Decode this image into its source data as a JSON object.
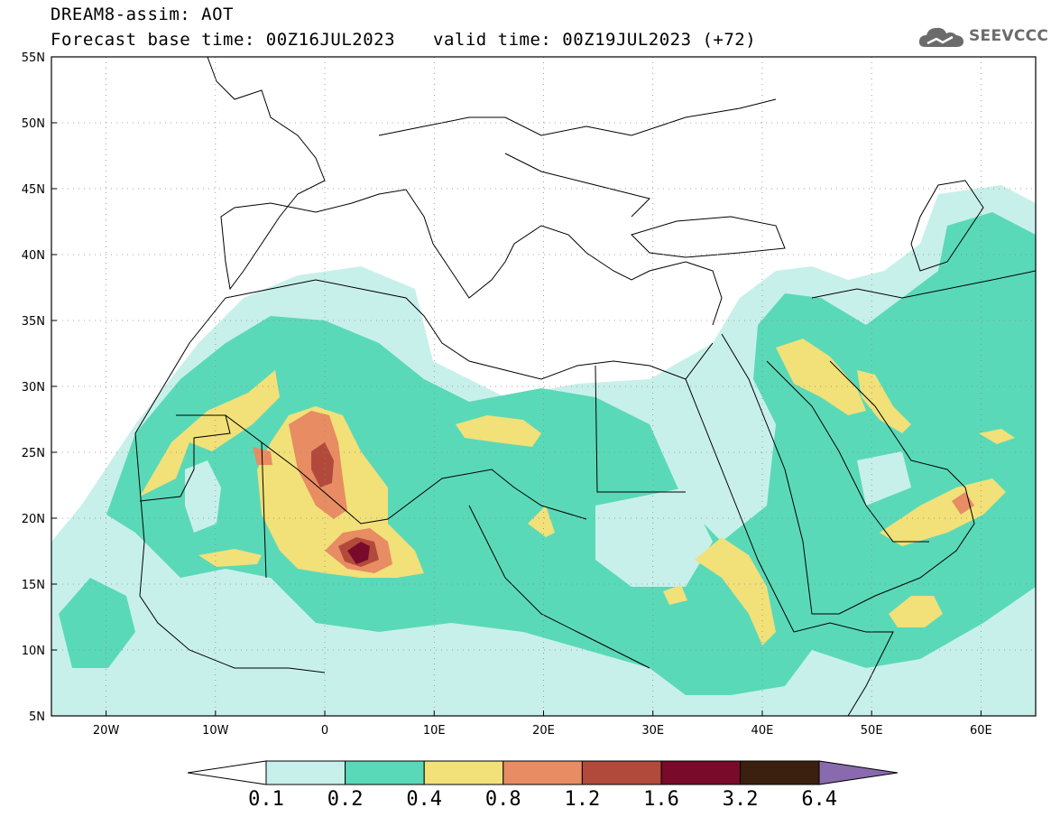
{
  "header": {
    "line1": "DREAM8-assim: AOT",
    "line2": "Forecast base time: 00Z16JUL2023",
    "line3": "valid time: 00Z19JUL2023 (+72)",
    "logo_text": "SEEVCCC",
    "logo_icon": "cloud-icon"
  },
  "map": {
    "lon_range": [
      -25,
      65
    ],
    "lat_range": [
      5,
      55
    ],
    "lat_labels": [
      "55N",
      "50N",
      "45N",
      "40N",
      "35N",
      "30N",
      "25N",
      "20N",
      "15N",
      "10N",
      "5N"
    ],
    "lon_labels": [
      "20W",
      "10W",
      "0",
      "10E",
      "20E",
      "30E",
      "40E",
      "50E",
      "60E"
    ],
    "grid": "dotted",
    "colors": {
      "c01": "#c8f0ea",
      "c02": "#5ad9b8",
      "c04": "#f2e079",
      "c08": "#e88c63",
      "c12": "#b24a3c",
      "c16": "#7a0a2a",
      "c32": "#3b2010",
      "c64": "#8a6aae"
    }
  },
  "colorbar": {
    "labels": [
      "0.1",
      "0.2",
      "0.4",
      "0.8",
      "1.2",
      "1.6",
      "3.2",
      "6.4"
    ]
  }
}
